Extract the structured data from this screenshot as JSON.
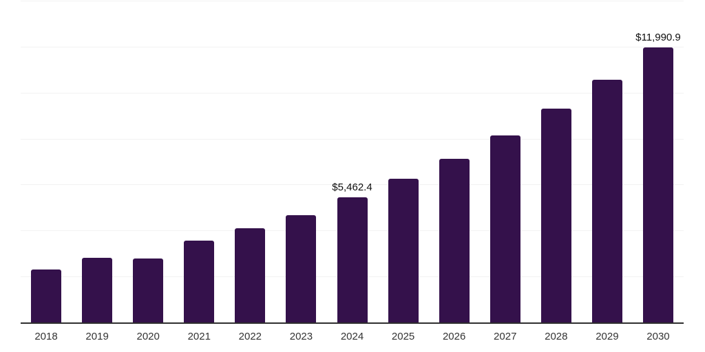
{
  "chart_data": {
    "type": "bar",
    "title": "",
    "xlabel": "",
    "ylabel": "",
    "categories": [
      "2018",
      "2019",
      "2020",
      "2021",
      "2022",
      "2023",
      "2024",
      "2025",
      "2026",
      "2027",
      "2028",
      "2029",
      "2030"
    ],
    "values": [
      2330,
      2840,
      2820,
      3580,
      4130,
      4710,
      5462.4,
      6270,
      7160,
      8180,
      9320,
      10590,
      11990.9
    ],
    "annotations": [
      {
        "category": "2024",
        "text": "$5,462.4"
      },
      {
        "category": "2030",
        "text": "$11,990.9"
      }
    ],
    "ylim": [
      0,
      14000
    ],
    "gridline_step": 2000,
    "grid": "horizontal-only",
    "legend_position": "none",
    "colors": {
      "bar": "#34114b",
      "gridline": "#f2f2f2",
      "axis_line": "#2e2e2e",
      "tick_label": "#333333",
      "value_label": "#0d0d0d"
    }
  }
}
